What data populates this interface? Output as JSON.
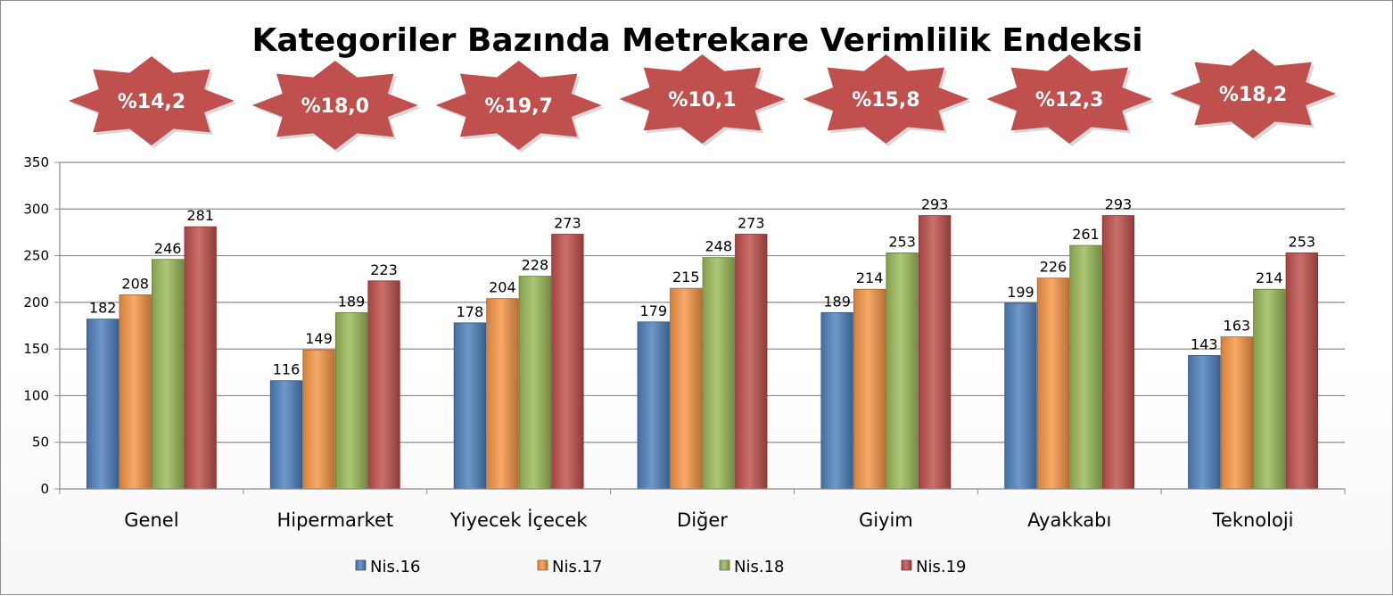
{
  "chart_data": {
    "type": "bar",
    "title": "Kategoriler Bazında Metrekare Verimlilik Endeksi",
    "categories": [
      "Genel",
      "Hipermarket",
      "Yiyecek İçecek",
      "Diğer",
      "Giyim",
      "Ayakkabı",
      "Teknoloji"
    ],
    "series": [
      {
        "name": "Nis.16",
        "color": "#4f81bd",
        "values": [
          182,
          116,
          178,
          179,
          189,
          199,
          143
        ]
      },
      {
        "name": "Nis.17",
        "color": "#f79646",
        "values": [
          208,
          149,
          204,
          215,
          214,
          226,
          163
        ]
      },
      {
        "name": "Nis.18",
        "color": "#9bbb59",
        "values": [
          246,
          189,
          228,
          248,
          253,
          261,
          214
        ]
      },
      {
        "name": "Nis.19",
        "color": "#c0504d",
        "values": [
          281,
          223,
          273,
          273,
          293,
          293,
          253
        ]
      }
    ],
    "badges": [
      "%14,2",
      "%18,0",
      "%19,7",
      "%10,1",
      "%15,8",
      "%12,3",
      "%18,2"
    ],
    "badge_color": "#c0504d",
    "ylim": [
      0,
      350
    ],
    "yticks": [
      0,
      50,
      100,
      150,
      200,
      250,
      300,
      350
    ],
    "grid": true,
    "legend_position": "bottom",
    "data_labels": true
  }
}
